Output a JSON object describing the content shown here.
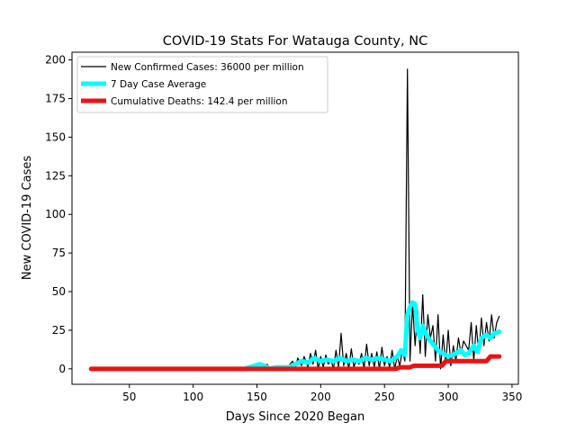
{
  "chart_data": {
    "type": "line",
    "title": "COVID-19 Stats For Watauga County, NC",
    "xlabel": "Days Since 2020 Began",
    "ylabel": "New COVID-19 Cases",
    "xlim": [
      5,
      355
    ],
    "ylim": [
      -10,
      205
    ],
    "xticks": [
      50,
      100,
      150,
      200,
      250,
      300,
      350
    ],
    "yticks": [
      0,
      25,
      50,
      75,
      100,
      125,
      150,
      175,
      200
    ],
    "grid": false,
    "legend_position": "top-left",
    "series": [
      {
        "name": "New Confirmed Cases: 36000 per million",
        "color": "#000000",
        "x": [
          20,
          60,
          85,
          88,
          90,
          92,
          95,
          100,
          140,
          150,
          152,
          155,
          158,
          160,
          165,
          170,
          175,
          178,
          180,
          182,
          185,
          187,
          190,
          192,
          194,
          196,
          198,
          200,
          202,
          204,
          206,
          208,
          210,
          212,
          214,
          216,
          218,
          220,
          222,
          224,
          226,
          228,
          230,
          232,
          234,
          236,
          238,
          240,
          242,
          244,
          246,
          248,
          250,
          252,
          254,
          256,
          258,
          260,
          262,
          264,
          266,
          268,
          270,
          272,
          274,
          276,
          278,
          280,
          282,
          284,
          286,
          288,
          290,
          292,
          294,
          296,
          298,
          300,
          302,
          304,
          306,
          308,
          310,
          312,
          314,
          316,
          318,
          320,
          322,
          324,
          326,
          328,
          330,
          332,
          334,
          336,
          338,
          340
        ],
        "y": [
          0,
          0,
          0,
          1,
          0,
          1,
          0,
          0,
          0,
          0,
          3,
          1,
          3,
          0,
          1,
          0,
          2,
          5,
          0,
          7,
          2,
          8,
          1,
          10,
          3,
          12,
          0,
          8,
          1,
          9,
          3,
          6,
          0,
          12,
          1,
          23,
          2,
          10,
          0,
          13,
          1,
          6,
          3,
          10,
          0,
          16,
          2,
          10,
          1,
          11,
          0,
          14,
          2,
          8,
          1,
          12,
          0,
          8,
          2,
          12,
          5,
          194,
          5,
          42,
          15,
          38,
          10,
          48,
          8,
          35,
          20,
          28,
          5,
          35,
          0,
          22,
          3,
          25,
          2,
          15,
          5,
          20,
          10,
          18,
          15,
          12,
          30,
          5,
          28,
          10,
          33,
          15,
          30,
          18,
          35,
          20,
          30,
          34
        ]
      },
      {
        "name": "7 Day Case Average",
        "color": "#00ffff",
        "x": [
          20,
          140,
          152,
          156,
          160,
          165,
          175,
          180,
          185,
          190,
          195,
          200,
          205,
          210,
          215,
          220,
          225,
          230,
          235,
          240,
          245,
          250,
          255,
          260,
          263,
          266,
          268,
          270,
          272,
          274,
          276,
          278,
          280,
          283,
          286,
          290,
          293,
          296,
          300,
          303,
          306,
          310,
          313,
          316,
          320,
          323,
          326,
          330,
          333,
          336,
          340
        ],
        "y": [
          0,
          0,
          3,
          2,
          0,
          1,
          1,
          3,
          5,
          4,
          7,
          5,
          6,
          5,
          7,
          5,
          6,
          5,
          7,
          6,
          7,
          6,
          5,
          8,
          12,
          9,
          35,
          40,
          43,
          42,
          25,
          20,
          28,
          22,
          18,
          14,
          11,
          10,
          8,
          9,
          10,
          12,
          9,
          10,
          15,
          11,
          20,
          22,
          20,
          23,
          24
        ]
      },
      {
        "name": "Cumulative Deaths: 142.4 per million",
        "color": "#ee1111",
        "x": [
          20,
          259,
          262,
          270,
          273,
          295,
          298,
          330,
          333,
          340
        ],
        "y": [
          0,
          0,
          1,
          1,
          2,
          2,
          5,
          5,
          8,
          8
        ]
      }
    ]
  }
}
